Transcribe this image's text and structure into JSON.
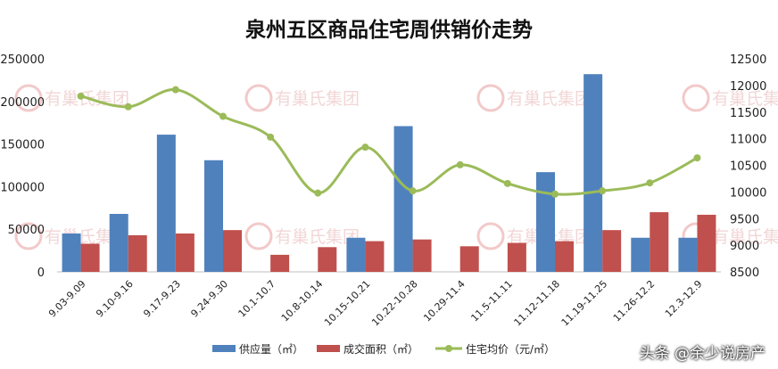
{
  "chart_data": {
    "type": "bar+line",
    "title": "泉州五区商品住宅周供销价走势",
    "categories": [
      "9.03-9.09",
      "9.10-9.16",
      "9.17-9.23",
      "9.24-9.30",
      "10.1-10.7",
      "10.8-10.14",
      "10.15-10.21",
      "10.22-10.28",
      "10.29-11.4",
      "11.5-11.11",
      "11.12-11.18",
      "11.19-11.25",
      "11.26-12.2",
      "12.3-12.9"
    ],
    "series": [
      {
        "name": "供应量（㎡）",
        "type": "bar",
        "axis": "left",
        "color": "#4f81bd",
        "values": [
          45000,
          68000,
          161000,
          131000,
          0,
          0,
          40000,
          171000,
          0,
          0,
          117000,
          232000,
          40000,
          40000
        ]
      },
      {
        "name": "成交面积（㎡）",
        "type": "bar",
        "axis": "left",
        "color": "#c0504d",
        "values": [
          33000,
          43000,
          45000,
          49000,
          20000,
          29000,
          36000,
          38000,
          30000,
          34000,
          36000,
          49000,
          70000,
          67000
        ]
      },
      {
        "name": "住宅均价（元/㎡）",
        "type": "line",
        "axis": "right",
        "color": "#9bbb59",
        "values": [
          11800,
          11600,
          11920,
          11420,
          11030,
          9980,
          10840,
          10020,
          10510,
          10160,
          9960,
          10020,
          10170,
          10640
        ]
      }
    ],
    "left_axis": {
      "min": 0,
      "max": 250000,
      "ticks": [
        0,
        50000,
        100000,
        150000,
        200000,
        250000
      ]
    },
    "right_axis": {
      "min": 8500,
      "max": 12500,
      "ticks": [
        8500,
        9000,
        9500,
        10000,
        10500,
        11000,
        11500,
        12000,
        12500
      ]
    },
    "legend_position": "bottom",
    "grid": false
  },
  "watermark": "有巢氏集团",
  "credit": "头条 @余少说房产"
}
